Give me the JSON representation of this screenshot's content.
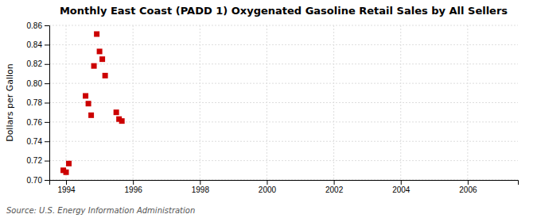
{
  "chart_data": {
    "type": "scatter",
    "title": "Monthly East Coast (PADD 1) Oxygenated Gasoline Retail Sales by All Sellers",
    "ylabel": "Dollars per Gallon",
    "annotations": [
      "Source: U.S. Energy Information Administration"
    ],
    "x": [
      1993.917,
      1994.0,
      1994.083,
      1994.583,
      1994.667,
      1994.75,
      1994.833,
      1994.917,
      1995.0,
      1995.083,
      1995.167,
      1995.5,
      1995.583,
      1995.667
    ],
    "values": [
      0.71,
      0.708,
      0.717,
      0.787,
      0.779,
      0.767,
      0.818,
      0.851,
      0.833,
      0.825,
      0.808,
      0.77,
      0.763,
      0.761
    ],
    "color": "#cc0000",
    "marker": "square",
    "xlim": [
      1993.5,
      2007.5
    ],
    "xticks": [
      1994,
      1996,
      1998,
      2000,
      2002,
      2004,
      2006
    ],
    "ylim": [
      0.7,
      0.86
    ],
    "yticks": [
      {
        "value": 0.7,
        "label": "0.70"
      },
      0.72,
      0.74,
      0.76,
      0.78,
      {
        "value": 0.8,
        "label": "0.80"
      },
      0.82,
      0.84,
      0.86
    ],
    "grid": true
  }
}
